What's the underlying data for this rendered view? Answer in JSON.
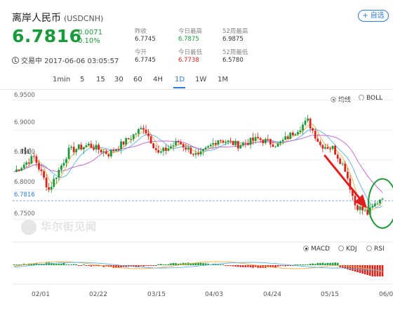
{
  "header": {
    "name": "离岸人民币",
    "code": "(USDCNH)",
    "add_label": "+ 自选",
    "price": "6.7816",
    "change": "0.0071",
    "change_pct": "0.10%",
    "status": "交易中 2017-06-06 03:05:57",
    "stats": [
      {
        "label": "昨收",
        "value": "6.7745",
        "color": "neutral"
      },
      {
        "label": "今日最高",
        "value": "6.7875",
        "color": "green"
      },
      {
        "label": "52周最高",
        "value": "6.9875",
        "color": "neutral"
      },
      {
        "label": "今开",
        "value": "6.7745",
        "color": "neutral"
      },
      {
        "label": "今日最低",
        "value": "6.7738",
        "color": "red"
      },
      {
        "label": "52周最低",
        "value": "6.5780",
        "color": "neutral"
      }
    ]
  },
  "tabs": [
    "1min",
    "5",
    "15",
    "30",
    "60",
    "4H",
    "1D",
    "1W",
    "1M"
  ],
  "active_tab": "1D",
  "main_options": [
    {
      "label": "均线",
      "selected": true
    },
    {
      "label": "BOLL",
      "selected": false
    }
  ],
  "indicator_options": [
    {
      "label": "MACD",
      "selected": true
    },
    {
      "label": "KDJ",
      "selected": false
    },
    {
      "label": "RSI",
      "selected": false
    }
  ],
  "y_labels": [
    "6.9500",
    "6.9000",
    "6.8500",
    "6.8000",
    "6.7816",
    "6.7500"
  ],
  "x_labels": [
    "02/01",
    "02/22",
    "03/15",
    "04/03",
    "04/24",
    "05/15",
    "06/0"
  ],
  "watermark": "华尔街见闻",
  "colors": {
    "up": "#1a9a3a",
    "down": "#d9251c",
    "accent": "#2f7bd8",
    "annotation": "#e0201e",
    "ellipse": "#1f9a3a"
  },
  "chart_data": {
    "type": "candlestick",
    "y_range": [
      6.73,
      6.965
    ],
    "current_price": 6.7816,
    "overlays": [
      "moving averages",
      "annotation arrow",
      "annotation ellipse"
    ],
    "indicator": "MACD"
  }
}
